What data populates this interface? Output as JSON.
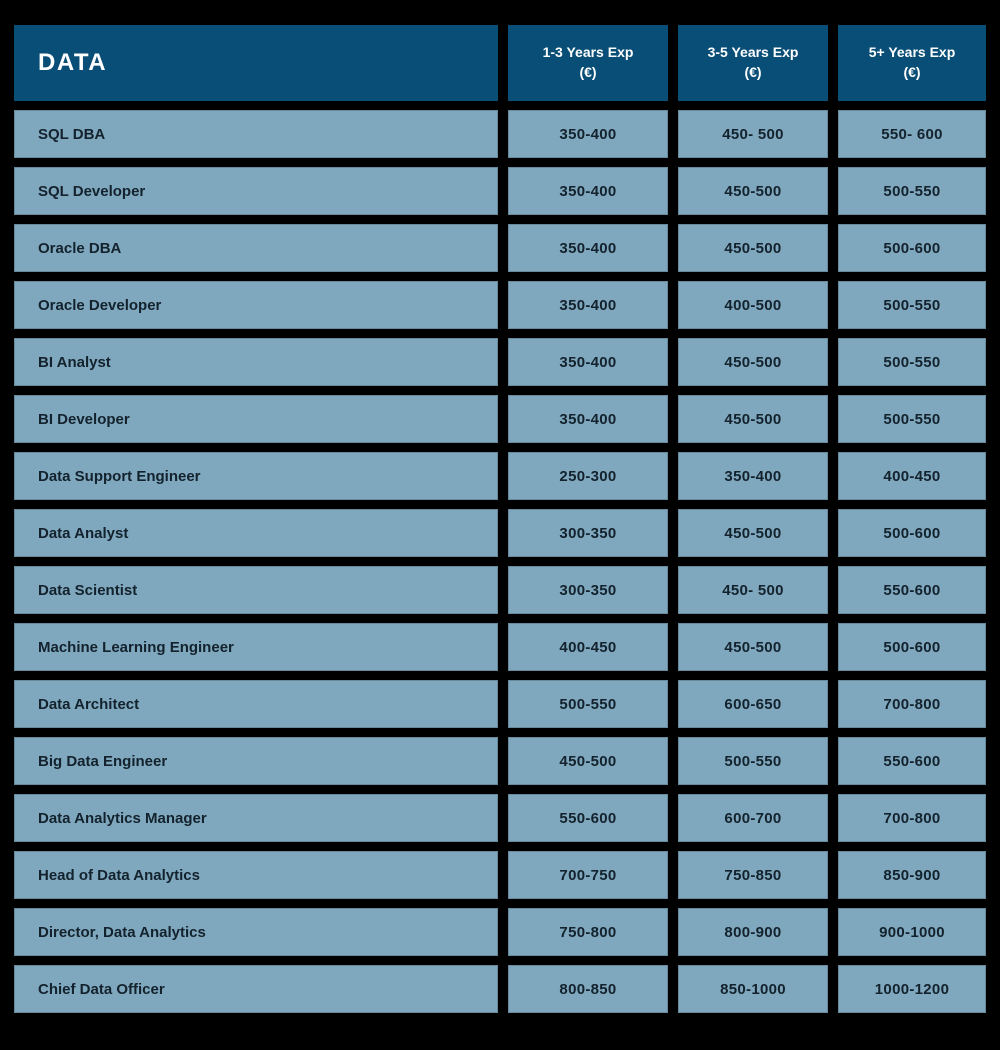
{
  "chart_data": {
    "type": "table",
    "title": "DATA",
    "column_headers": [
      {
        "label": "1-3 Years Exp",
        "unit": "(€)"
      },
      {
        "label": "3-5 Years Exp",
        "unit": "(€)"
      },
      {
        "label": "5+ Years Exp",
        "unit": "(€)"
      }
    ],
    "rows": [
      {
        "role": "SQL DBA",
        "values": [
          "350-400",
          "450- 500",
          "550- 600"
        ]
      },
      {
        "role": "SQL Developer",
        "values": [
          "350-400",
          "450-500",
          "500-550"
        ]
      },
      {
        "role": "Oracle DBA",
        "values": [
          "350-400",
          "450-500",
          "500-600"
        ]
      },
      {
        "role": "Oracle Developer",
        "values": [
          "350-400",
          "400-500",
          "500-550"
        ]
      },
      {
        "role": "BI Analyst",
        "values": [
          "350-400",
          "450-500",
          "500-550"
        ]
      },
      {
        "role": "BI Developer",
        "values": [
          "350-400",
          "450-500",
          "500-550"
        ]
      },
      {
        "role": "Data Support Engineer",
        "values": [
          "250-300",
          "350-400",
          "400-450"
        ]
      },
      {
        "role": "Data Analyst",
        "values": [
          "300-350",
          "450-500",
          "500-600"
        ]
      },
      {
        "role": "Data Scientist",
        "values": [
          "300-350",
          "450- 500",
          "550-600"
        ]
      },
      {
        "role": "Machine Learning Engineer",
        "values": [
          "400-450",
          "450-500",
          "500-600"
        ]
      },
      {
        "role": "Data Architect",
        "values": [
          "500-550",
          "600-650",
          "700-800"
        ]
      },
      {
        "role": "Big Data Engineer",
        "values": [
          "450-500",
          "500-550",
          "550-600"
        ]
      },
      {
        "role": "Data Analytics Manager",
        "values": [
          "550-600",
          "600-700",
          "700-800"
        ]
      },
      {
        "role": "Head of Data Analytics",
        "values": [
          "700-750",
          "750-850",
          "850-900"
        ]
      },
      {
        "role": "Director, Data Analytics",
        "values": [
          "750-800",
          "800-900",
          "900-1000"
        ]
      },
      {
        "role": "Chief Data Officer",
        "values": [
          "800-850",
          "850-1000",
          "1000-1200"
        ]
      }
    ]
  },
  "colors": {
    "background": "#000000",
    "header_fill": "#094e76",
    "header_text": "#ffffff",
    "cell_fill": "#7fa8bf",
    "cell_text": "#13222c"
  }
}
